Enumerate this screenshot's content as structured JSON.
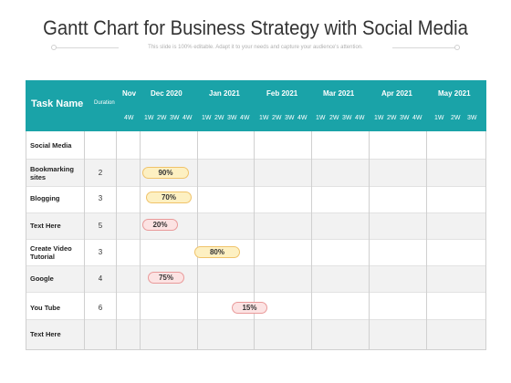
{
  "title": "Gantt Chart for Business Strategy with Social Media",
  "subtitle": "This slide is 100% editable. Adapt it to your needs and capture your audience's attention.",
  "header": {
    "task_name": "Task Name",
    "duration": "Duration",
    "months": [
      "Nov",
      "Dec  2020",
      "Jan  2021",
      "Feb  2021",
      "Mar  2021",
      "Apr  2021",
      "May  2021"
    ],
    "weeks": [
      "4W",
      "1W",
      "2W",
      "3W",
      "4W",
      "1W",
      "2W",
      "3W",
      "4W",
      "1W",
      "2W",
      "3W",
      "4W",
      "1W",
      "2W",
      "3W",
      "4W",
      "1W",
      "2W",
      "3W",
      "4W",
      "1W",
      "2W",
      "3W"
    ]
  },
  "colors": {
    "header": "#1aa3a8",
    "bar_yellow": "#fdf0c2",
    "bar_red": "#fce3e3"
  },
  "tasks": [
    {
      "name": "Social Media",
      "duration": ""
    },
    {
      "name": "Bookmarking sites",
      "duration": "2",
      "progress": "90%",
      "bar_color": "yellow"
    },
    {
      "name": "Blogging",
      "duration": "3",
      "progress": "70%",
      "bar_color": "yellow"
    },
    {
      "name": "Text Here",
      "duration": "5",
      "progress": "20%",
      "bar_color": "red"
    },
    {
      "name": "Create Video Tutorial",
      "duration": "3",
      "progress": "80%",
      "bar_color": "yellow"
    },
    {
      "name": "Google",
      "duration": "4",
      "progress": "75%",
      "bar_color": "red"
    },
    {
      "name": "You Tube",
      "duration": "6",
      "progress": "15%",
      "bar_color": "red"
    },
    {
      "name": "Text Here",
      "duration": ""
    }
  ]
}
